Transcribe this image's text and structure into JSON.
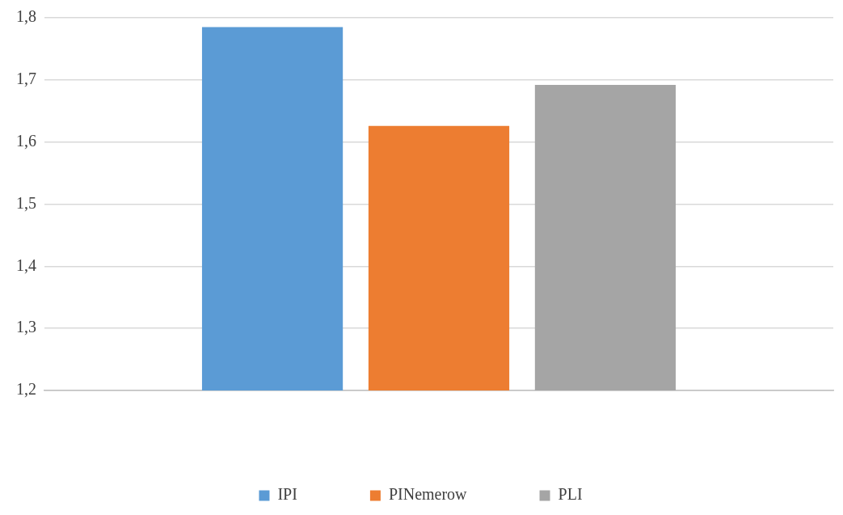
{
  "chart_data": {
    "type": "bar",
    "categories": [
      null
    ],
    "series": [
      {
        "name": "IPI",
        "color": "#5b9bd5",
        "values": [
          1.785
        ]
      },
      {
        "name": "PINemerow",
        "color": "#ed7d31",
        "values": [
          1.626
        ]
      },
      {
        "name": "PLI",
        "color": "#a5a5a5",
        "values": [
          1.692
        ]
      }
    ],
    "ylim": [
      1.2,
      1.8
    ],
    "yticks": [
      {
        "value": 1.2,
        "label": "1,2"
      },
      {
        "value": 1.3,
        "label": "1,3"
      },
      {
        "value": 1.4,
        "label": "1,4"
      },
      {
        "value": 1.5,
        "label": "1,5"
      },
      {
        "value": 1.6,
        "label": "1,6"
      },
      {
        "value": 1.7,
        "label": "1,7"
      },
      {
        "value": 1.8,
        "label": "1,8"
      }
    ],
    "grid": "y",
    "legend": "bottom"
  }
}
